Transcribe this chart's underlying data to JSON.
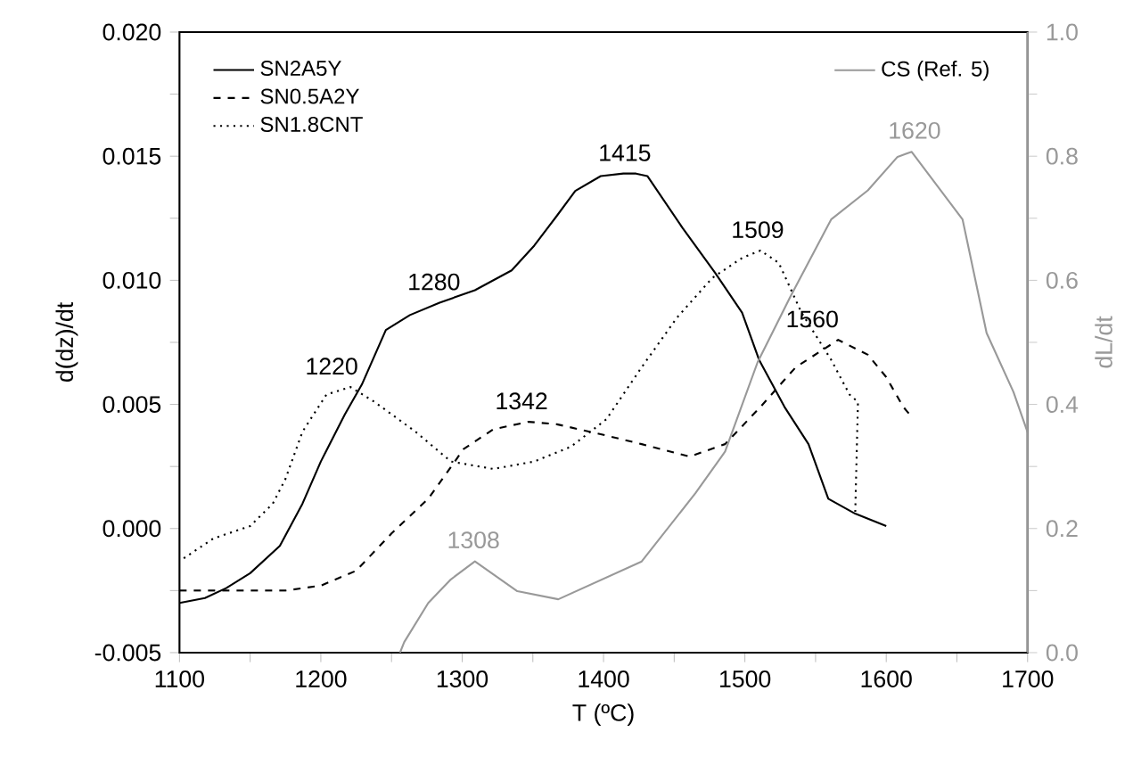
{
  "chart_data": {
    "type": "line",
    "xlabel": "T (ºC)",
    "ylabel": "d(dz)/dt",
    "y2label": "dL/dt",
    "xlim": [
      1100,
      1700
    ],
    "xticks": [
      1100,
      {
        "value": 1150,
        "label": null
      },
      1200,
      {
        "value": 1250,
        "label": null
      },
      1300,
      {
        "value": 1350,
        "label": null
      },
      1400,
      {
        "value": 1450,
        "label": null
      },
      1500,
      {
        "value": 1550,
        "label": null
      },
      1600,
      {
        "value": 1650,
        "label": null
      },
      1700
    ],
    "ylim": [
      -0.005,
      0.02
    ],
    "yticks": [
      {
        "value": -0.005,
        "label": "-0.005"
      },
      {
        "value": -0.0025,
        "label": null
      },
      {
        "value": 0,
        "label": "0.000"
      },
      {
        "value": 0.0025,
        "label": null
      },
      {
        "value": 0.005,
        "label": "0.005"
      },
      {
        "value": 0.0075,
        "label": null
      },
      {
        "value": 0.01,
        "label": "0.010"
      },
      {
        "value": 0.0125,
        "label": null
      },
      {
        "value": 0.015,
        "label": "0.015"
      },
      {
        "value": 0.0175,
        "label": null
      },
      {
        "value": 0.02,
        "label": "0.020"
      }
    ],
    "y2lim": [
      0,
      1
    ],
    "y2ticks": [
      {
        "value": 0,
        "label": "0.0"
      },
      {
        "value": 0.1,
        "label": null
      },
      0.2,
      {
        "value": 0.3,
        "label": null
      },
      0.4,
      {
        "value": 0.5,
        "label": null
      },
      0.6,
      {
        "value": 0.7,
        "label": null
      },
      0.8,
      {
        "value": 0.9,
        "label": null
      },
      {
        "value": 1,
        "label": "1.0"
      }
    ],
    "legend": "top left",
    "marker": "none",
    "grid": false,
    "series": [
      {
        "name": "SN2A5Y",
        "color": "#000000",
        "line_style": "solid",
        "x": [
          1100,
          1118,
          1133,
          1150,
          1171,
          1187,
          1200,
          1217,
          1229,
          1246,
          1263,
          1284,
          1309,
          1335,
          1351,
          1367,
          1380,
          1398,
          1414,
          1423,
          1431,
          1456,
          1479,
          1498,
          1510,
          1528,
          1545,
          1559,
          1578,
          1600
        ],
        "values": [
          -0.003,
          -0.0028,
          -0.0024,
          -0.0018,
          -0.0007,
          0.001,
          0.0027,
          0.0046,
          0.0058,
          0.008,
          0.0086,
          0.0091,
          0.0096,
          0.0104,
          0.0114,
          0.0126,
          0.0136,
          0.0142,
          0.0143,
          0.0143,
          0.0142,
          0.0121,
          0.0103,
          0.0087,
          0.0068,
          0.0049,
          0.0034,
          0.0012,
          0.0006,
          0.0001
        ]
      },
      {
        "name": "SN0.5A2Y",
        "color": "#000000",
        "line_style": "dashed",
        "x": [
          1100,
          1175,
          1200,
          1225,
          1250,
          1276,
          1301,
          1322,
          1347,
          1367,
          1398,
          1427,
          1461,
          1486,
          1511,
          1536,
          1566,
          1587,
          1600,
          1612,
          1618
        ],
        "values": [
          -0.0025,
          -0.0025,
          -0.0023,
          -0.0017,
          -0.0002,
          0.0012,
          0.0032,
          0.004,
          0.0043,
          0.0042,
          0.0038,
          0.0034,
          0.0029,
          0.0034,
          0.0049,
          0.0065,
          0.0076,
          0.007,
          0.0061,
          0.0049,
          0.0045
        ]
      },
      {
        "name": "SN1.8CNT",
        "color": "#000000",
        "line_style": "dotted",
        "x": [
          1103,
          1124,
          1150,
          1166,
          1175,
          1187,
          1204,
          1221,
          1238,
          1267,
          1292,
          1322,
          1351,
          1377,
          1402,
          1427,
          1452,
          1477,
          1498,
          1511,
          1524,
          1540,
          1561,
          1574,
          1580,
          1578
        ],
        "values": [
          -0.0012,
          -0.0004,
          0.0001,
          0.001,
          0.002,
          0.0039,
          0.0054,
          0.0057,
          0.0051,
          0.0039,
          0.0027,
          0.0024,
          0.0027,
          0.0033,
          0.0044,
          0.0065,
          0.0085,
          0.0101,
          0.0109,
          0.0112,
          0.0107,
          0.0087,
          0.0068,
          0.0054,
          0.0051,
          0.0005
        ]
      },
      {
        "name": "CS (Ref. 5)",
        "color": "#999999",
        "line_style": "solid",
        "axis": "y2",
        "x": [
          1256,
          1259,
          1276,
          1292,
          1309,
          1339,
          1368,
          1427,
          1465,
          1486,
          1509,
          1532,
          1561,
          1587,
          1608,
          1618,
          1654,
          1671,
          1690,
          1700
        ],
        "values": [
          0.0,
          0.017,
          0.08,
          0.118,
          0.147,
          0.099,
          0.086,
          0.147,
          0.257,
          0.324,
          0.468,
          0.573,
          0.698,
          0.745,
          0.799,
          0.807,
          0.698,
          0.515,
          0.42,
          0.355
        ]
      }
    ],
    "annotations": [
      {
        "text": "1220",
        "x": 1220,
        "y": 0.0057
      },
      {
        "text": "1280",
        "x": 1280,
        "y": 0.0091
      },
      {
        "text": "1342",
        "x": 1342,
        "y": 0.0043
      },
      {
        "text": "1415",
        "x": 1415,
        "y": 0.0143
      },
      {
        "text": "1509",
        "x": 1509,
        "y": 0.0112
      },
      {
        "text": "1560",
        "x": 1560,
        "y": 0.0076
      },
      {
        "text": "1308",
        "x": 1308,
        "y": -0.0013
      },
      {
        "text": "1620",
        "x": 1620,
        "y": 0.0152
      }
    ]
  }
}
